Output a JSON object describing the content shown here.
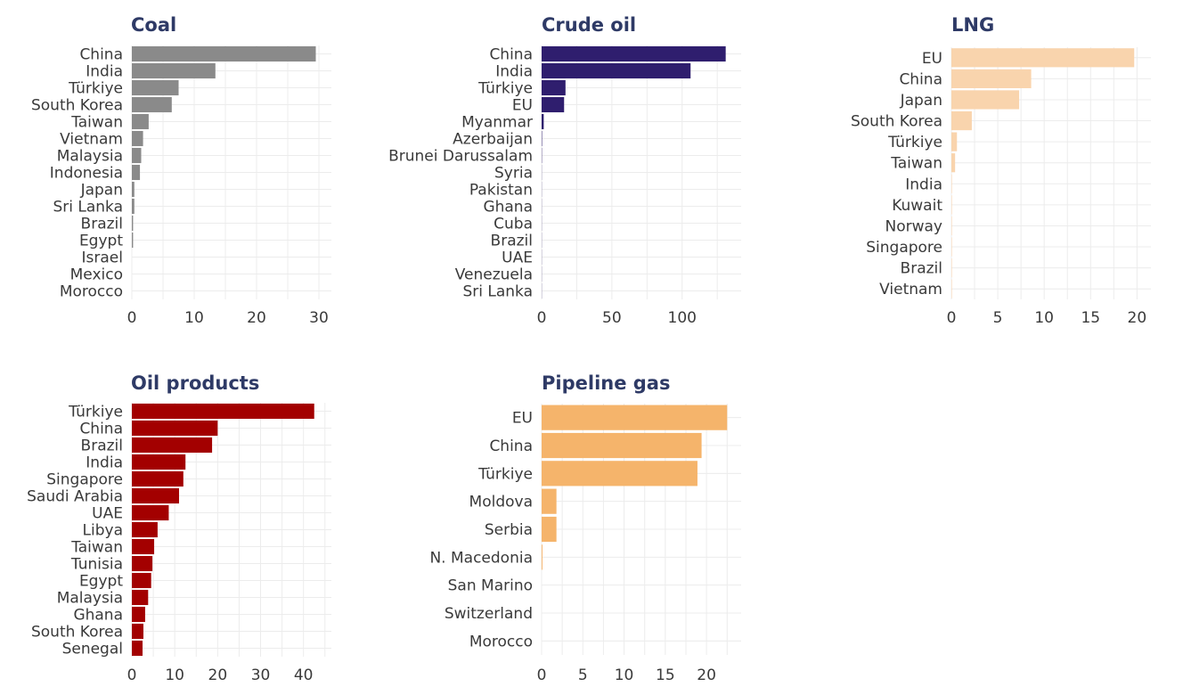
{
  "chart_data": [
    {
      "type": "bar",
      "orientation": "horizontal",
      "title": "Coal",
      "color": "#8a8a8a",
      "categories": [
        "China",
        "India",
        "Türkiye",
        "South Korea",
        "Taiwan",
        "Vietnam",
        "Malaysia",
        "Indonesia",
        "Japan",
        "Sri Lanka",
        "Brazil",
        "Egypt",
        "Israel",
        "Mexico",
        "Morocco"
      ],
      "values": [
        29.5,
        13.4,
        7.5,
        6.4,
        2.7,
        1.8,
        1.5,
        1.3,
        0.4,
        0.4,
        0.2,
        0.2,
        0.0,
        0.0,
        0.0
      ],
      "xlim": [
        0,
        32
      ],
      "ticks": [
        0,
        10,
        20,
        30
      ],
      "grid": true
    },
    {
      "type": "bar",
      "orientation": "horizontal",
      "title": "Crude oil",
      "color": "#2f1e6e",
      "categories": [
        "China",
        "India",
        "Türkiye",
        "EU",
        "Myanmar",
        "Azerbaijan",
        "Brunei Darussalam",
        "Syria",
        "Pakistan",
        "Ghana",
        "Cuba",
        "Brazil",
        "UAE",
        "Venezuela",
        "Sri Lanka"
      ],
      "values": [
        131,
        106,
        17,
        16,
        1.5,
        0.3,
        0.2,
        0.1,
        0.1,
        0.1,
        0.1,
        0.1,
        0.1,
        0.1,
        0.1
      ],
      "xlim": [
        0,
        142
      ],
      "ticks": [
        0,
        50,
        100
      ],
      "grid": true
    },
    {
      "type": "bar",
      "orientation": "horizontal",
      "title": "LNG",
      "color": "#f9d4ad",
      "categories": [
        "EU",
        "China",
        "Japan",
        "South Korea",
        "Türkiye",
        "Taiwan",
        "India",
        "Kuwait",
        "Norway",
        "Singapore",
        "Brazil",
        "Vietnam"
      ],
      "values": [
        19.7,
        8.6,
        7.3,
        2.2,
        0.6,
        0.4,
        0.05,
        0.05,
        0.05,
        0.05,
        0.05,
        0.05
      ],
      "xlim": [
        0,
        21.5
      ],
      "ticks": [
        0,
        5,
        10,
        15,
        20
      ],
      "grid": true
    },
    {
      "type": "bar",
      "orientation": "horizontal",
      "title": "Oil products",
      "color": "#a30000",
      "categories": [
        "Türkiye",
        "China",
        "Brazil",
        "India",
        "Singapore",
        "Saudi Arabia",
        "UAE",
        "Libya",
        "Taiwan",
        "Tunisia",
        "Egypt",
        "Malaysia",
        "Ghana",
        "South Korea",
        "Senegal"
      ],
      "values": [
        42.5,
        20,
        18.7,
        12.5,
        12,
        11,
        8.6,
        6,
        5.2,
        4.8,
        4.5,
        3.8,
        3.1,
        2.7,
        2.5
      ],
      "xlim": [
        0,
        46.5
      ],
      "ticks": [
        0,
        10,
        20,
        30,
        40
      ],
      "grid": true
    },
    {
      "type": "bar",
      "orientation": "horizontal",
      "title": "Pipeline gas",
      "color": "#f5b46b",
      "categories": [
        "EU",
        "China",
        "Türkiye",
        "Moldova",
        "Serbia",
        "N. Macedonia",
        "San Marino",
        "Switzerland",
        "Morocco"
      ],
      "values": [
        22.5,
        19.4,
        18.9,
        1.8,
        1.8,
        0.1,
        0.0,
        0.0,
        0.0
      ],
      "xlim": [
        0,
        24.2
      ],
      "ticks": [
        0,
        5,
        10,
        15,
        20
      ],
      "grid": true
    }
  ]
}
